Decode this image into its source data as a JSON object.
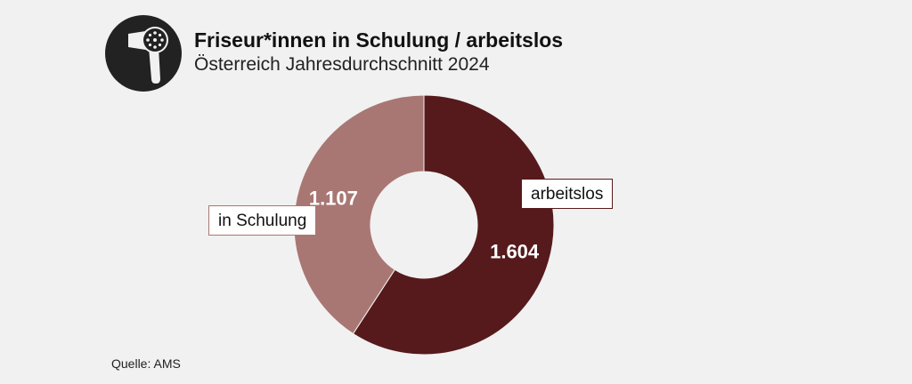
{
  "header": {
    "title": "Friseur*innen in Schulung / arbeitslos",
    "subtitle": "Österreich Jahresdurchschnitt 2024",
    "logo_icon": "hair-dryer-icon"
  },
  "chart_data": {
    "type": "pie",
    "donut": true,
    "slices": [
      {
        "label": "arbeitslos",
        "value": 1604,
        "value_label": "1.604",
        "color": "#561a1c"
      },
      {
        "label": "in Schulung",
        "value": 1107,
        "value_label": "1.107",
        "color": "#a97773"
      }
    ],
    "title": "Friseur*innen in Schulung / arbeitslos",
    "subtitle": "Österreich Jahresdurchschnitt 2024"
  },
  "footer": {
    "source": "Quelle: AMS"
  },
  "colors": {
    "background": "#f1f1f1",
    "logo_bg": "#222222",
    "arbeitslos": "#561a1c",
    "in_schulung": "#a97773"
  }
}
